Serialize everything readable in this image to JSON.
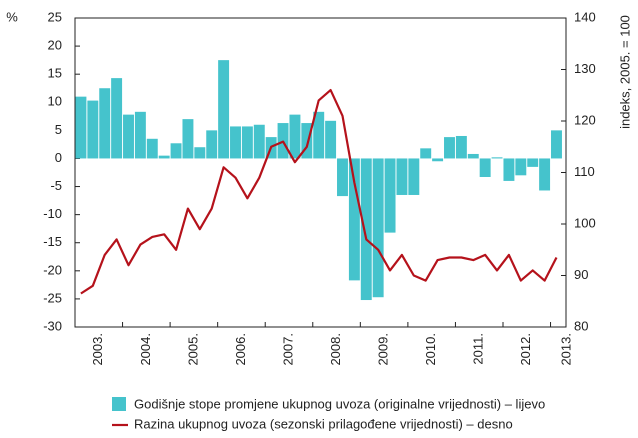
{
  "chart_data": {
    "type": "bar_line",
    "ylabel": "%",
    "y2label": "indeks, 2005. = 100",
    "categories": [
      "2003.",
      null,
      null,
      null,
      "2004.",
      null,
      null,
      null,
      "2005.",
      null,
      null,
      null,
      "2006.",
      null,
      null,
      null,
      "2007.",
      null,
      null,
      null,
      "2008.",
      null,
      null,
      null,
      "2009.",
      null,
      null,
      null,
      "2010.",
      null,
      null,
      null,
      "2011.",
      null,
      null,
      null,
      "2012.",
      null,
      null,
      null,
      "2013."
    ],
    "series": [
      {
        "name": "Godišnje stope promjene ukupnog uvoza (originalne vrijednosti) – lijevo",
        "color": "#45c3cc",
        "kind": "bar",
        "values": [
          11,
          10.3,
          12.5,
          14.3,
          7.8,
          8.3,
          3.5,
          0.5,
          2.7,
          7,
          2,
          5,
          17.5,
          5.7,
          5.7,
          6,
          3.8,
          6.3,
          7.8,
          6.3,
          8.3,
          6.7,
          -6.7,
          -21.7,
          -25.2,
          -24.7,
          -13.2,
          -6.5,
          -6.5,
          1.8,
          -0.5,
          3.8,
          4,
          0.8,
          -3.3,
          0.2,
          -4,
          -3,
          -1.5,
          -5.7,
          5
        ]
      },
      {
        "name": "Razina ukupnog uvoza (sezonski prilagođene vrijednosti) – desno",
        "color": "#b5121b",
        "kind": "line",
        "axis": "y2",
        "values": [
          86.5,
          88,
          94,
          97,
          92,
          96,
          97.5,
          98,
          95,
          103,
          99,
          103,
          111,
          109,
          105,
          109,
          115,
          116,
          112,
          115,
          124,
          126,
          121,
          108,
          97,
          95,
          91,
          94,
          90,
          89,
          93,
          93.5,
          93.5,
          93,
          94,
          91,
          94,
          89,
          91,
          89,
          93.5
        ]
      }
    ],
    "ylim": [
      -30,
      25
    ],
    "yticks": [
      -30,
      -25,
      -20,
      -15,
      -10,
      -5,
      0,
      5,
      10,
      15,
      20,
      25
    ],
    "y2lim": [
      80,
      140
    ],
    "y2ticks": [
      80,
      90,
      100,
      110,
      120,
      130,
      140
    ],
    "grid": false
  }
}
